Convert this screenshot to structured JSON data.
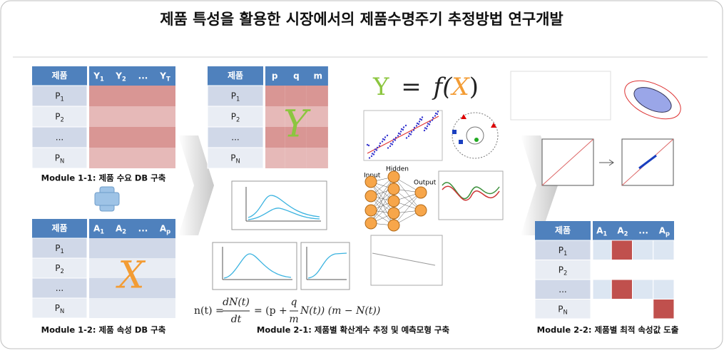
{
  "title": "제품 특성을 활용한 시장에서의 제품수명주기 추정방법 연구개발",
  "tables": [
    {
      "corner": "제품",
      "columns": [
        {
          "base": "Y",
          "sub": "1"
        },
        {
          "base": "Y",
          "sub": "2"
        },
        {
          "base": "..."
        },
        {
          "base": "Y",
          "sub": "T"
        }
      ],
      "rows": [
        {
          "base": "P",
          "sub": "1"
        },
        {
          "base": "P",
          "sub": "2"
        },
        {
          "base": "..."
        },
        {
          "base": "P",
          "sub": "N"
        }
      ],
      "caption": "Module 1-1: 제품 수요 DB 구축"
    },
    {
      "corner": "제품",
      "columns": [
        {
          "base": "A",
          "sub": "1"
        },
        {
          "base": "A",
          "sub": "2"
        },
        {
          "base": "..."
        },
        {
          "base": "A",
          "sub": "p"
        }
      ],
      "rows": [
        {
          "base": "P",
          "sub": "1"
        },
        {
          "base": "P",
          "sub": "2"
        },
        {
          "base": "..."
        },
        {
          "base": "P",
          "sub": "N"
        }
      ],
      "overlay": "X",
      "caption": "Module 1-2: 제품 속성 DB 구축"
    },
    {
      "corner": "제품",
      "columns": [
        {
          "base": "p"
        },
        {
          "base": "q"
        },
        {
          "base": "m"
        }
      ],
      "rows": [
        {
          "base": "P",
          "sub": "1"
        },
        {
          "base": "P",
          "sub": "2"
        },
        {
          "base": "..."
        },
        {
          "base": "P",
          "sub": "N"
        }
      ],
      "overlay": "Y",
      "caption": "Module 2-1: 제품별 확산계수 추정 및 예측모형 구축"
    },
    {
      "corner": "제품",
      "columns": [
        {
          "base": "A",
          "sub": "1"
        },
        {
          "base": "A",
          "sub": "2"
        },
        {
          "base": "..."
        },
        {
          "base": "A",
          "sub": "p"
        }
      ],
      "rows": [
        {
          "base": "P",
          "sub": "1"
        },
        {
          "base": "P",
          "sub": "2"
        },
        {
          "base": "..."
        },
        {
          "base": "P",
          "sub": "N"
        }
      ],
      "caption": "Module 2-2: 제품별 최적 속성값 도출"
    }
  ],
  "model_formula": {
    "y": "Y",
    "eq": "=",
    "open": "f(",
    "x": "X",
    "close": ")"
  },
  "bass_formula": {
    "lhs": "n(t) =",
    "num1": "dN(t)",
    "den1": "dt",
    "mid": "= (p +",
    "num2": "q",
    "den2": "m",
    "rest": "N(t)) (m − N(t))"
  },
  "neural_net": {
    "input": "Input",
    "hidden": "Hidden",
    "output": "Output"
  }
}
